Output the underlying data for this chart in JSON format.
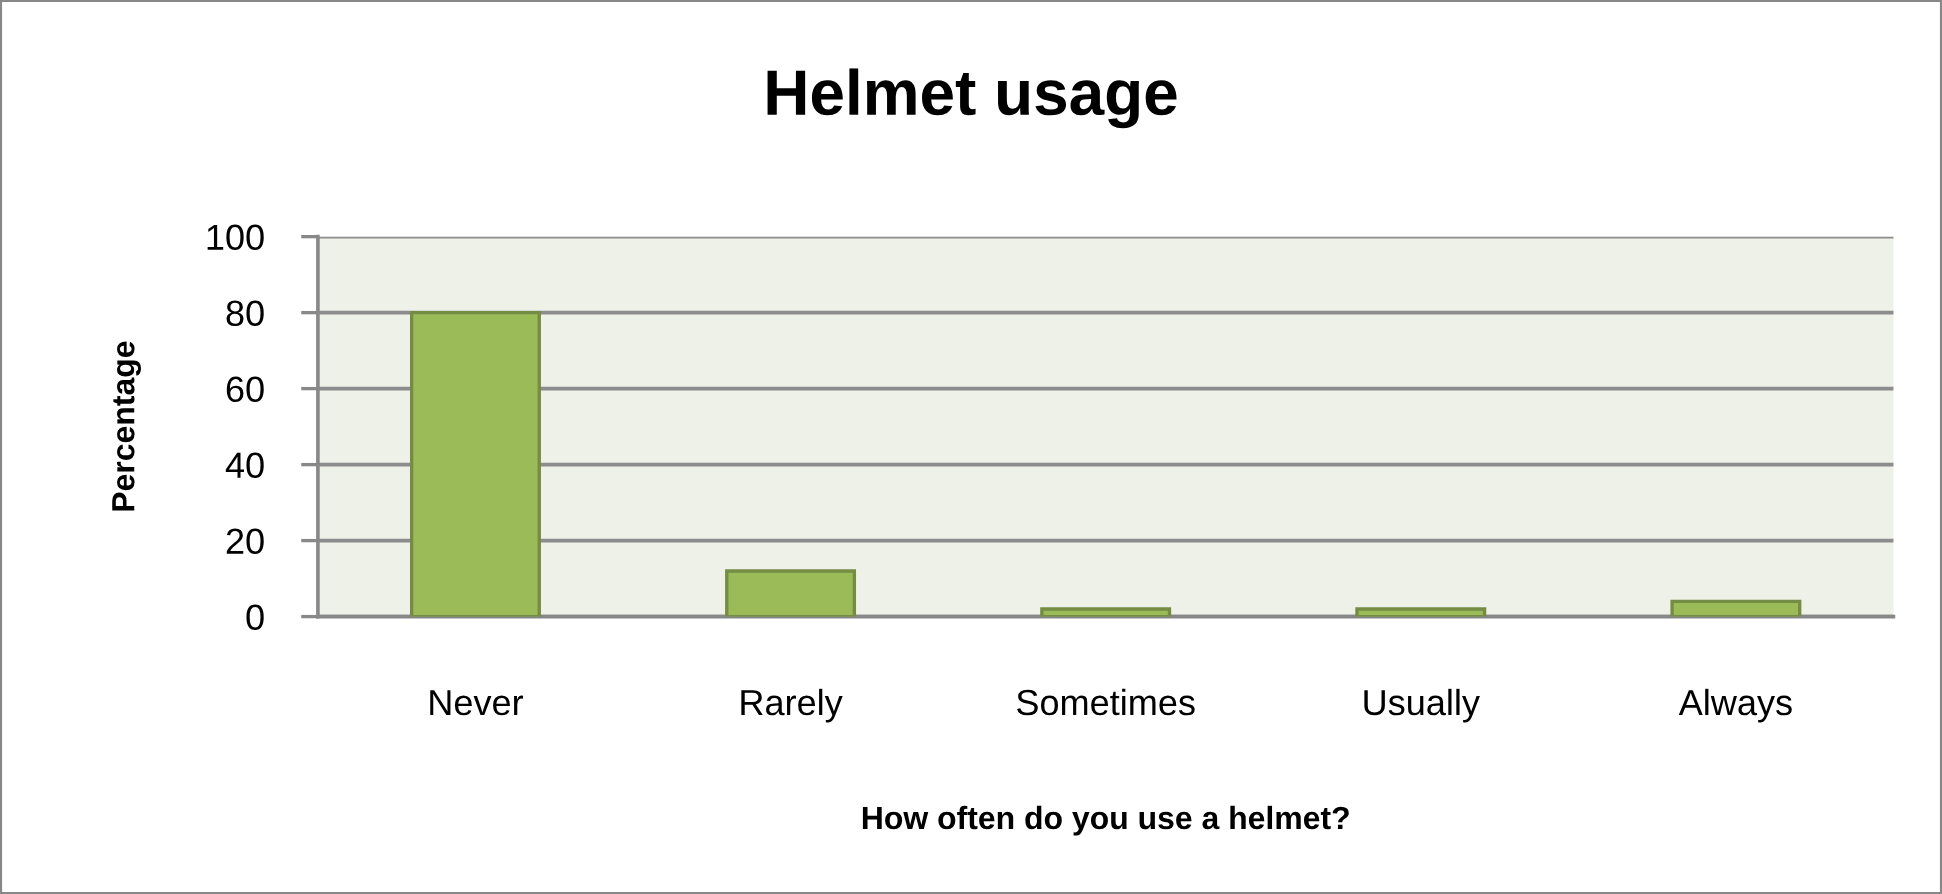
{
  "chart_data": {
    "type": "bar",
    "title": "Helmet usage",
    "xlabel": "How often do you use a helmet?",
    "ylabel": "Percentage",
    "categories": [
      "Never",
      "Rarely",
      "Sometimes",
      "Usually",
      "Always"
    ],
    "values": [
      80,
      12,
      2,
      2,
      4
    ],
    "color": "#9bbb59",
    "ylim": [
      0,
      100
    ],
    "yticks": [
      0,
      20,
      40,
      60,
      80,
      100
    ],
    "grid": "y"
  }
}
